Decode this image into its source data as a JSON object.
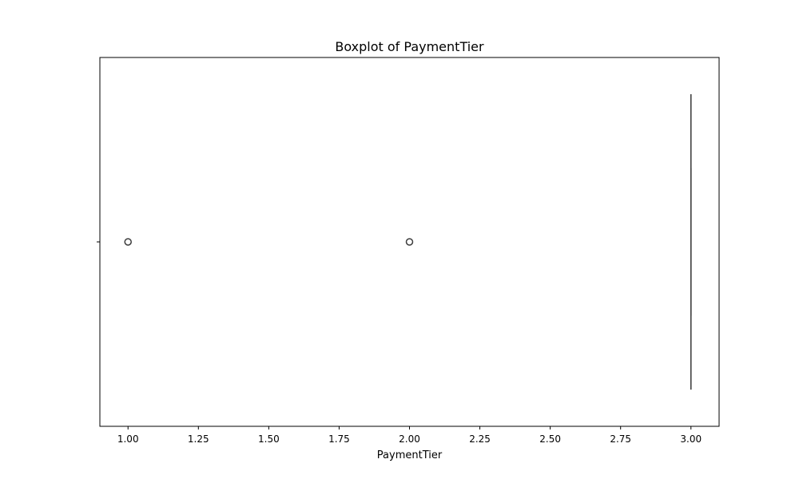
{
  "chart_data": {
    "type": "boxplot",
    "title": "Boxplot of PaymentTier",
    "xlabel": "PaymentTier",
    "ylabel": "",
    "orientation": "horizontal",
    "xlim": [
      0.9,
      3.1
    ],
    "x_ticks": [
      1.0,
      1.25,
      1.5,
      1.75,
      2.0,
      2.25,
      2.5,
      2.75,
      3.0
    ],
    "x_tick_labels": [
      "1.00",
      "1.25",
      "1.50",
      "1.75",
      "2.00",
      "2.25",
      "2.50",
      "2.75",
      "3.00"
    ],
    "grid": false,
    "legend": "none",
    "box": {
      "whisker_low": 3.0,
      "q1": 3.0,
      "median": 3.0,
      "q3": 3.0,
      "whisker_high": 3.0
    },
    "outliers": [
      1.0,
      2.0
    ],
    "colors": {
      "box_line": "#3d3d3d",
      "outlier_edge": "#3d3d3d",
      "axes": "#000000"
    }
  }
}
